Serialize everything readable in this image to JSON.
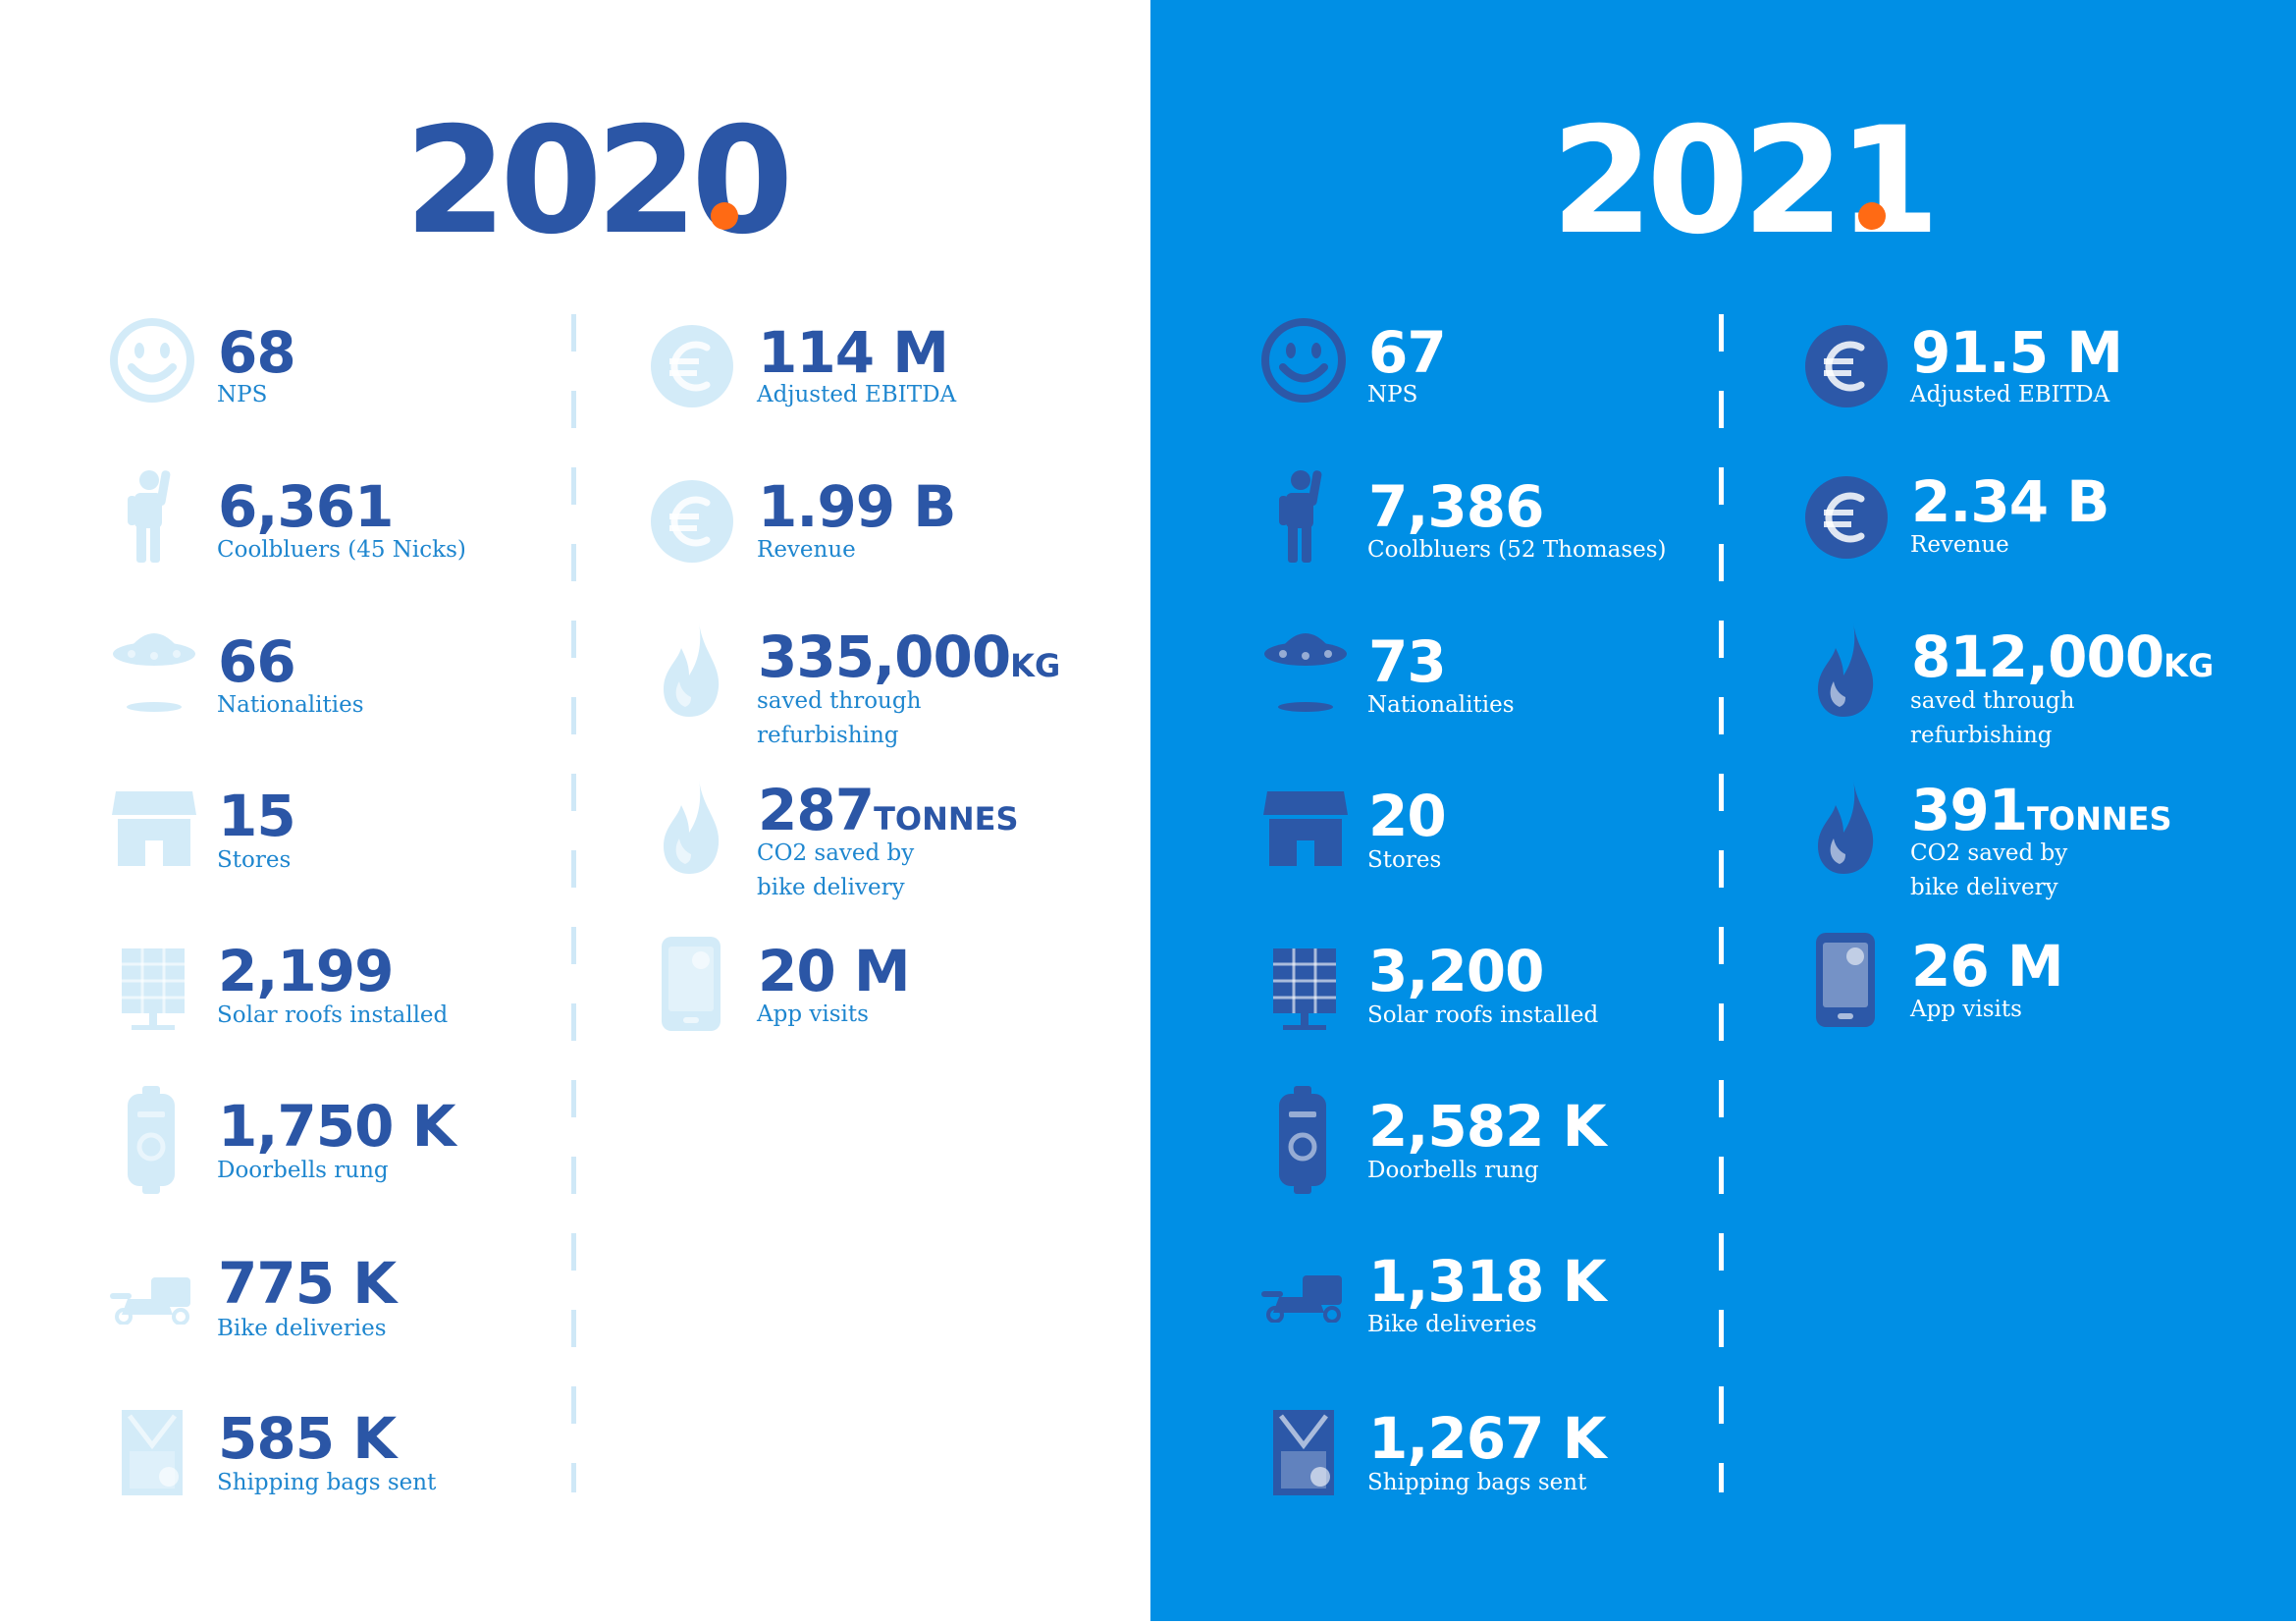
{
  "colors": {
    "dark_blue": "#2b56a6",
    "bright_blue": "#008fe5",
    "light_icon_blue": "#d3ebf8",
    "orange_dot": "#ff6a14",
    "white": "#ffffff"
  },
  "left": {
    "year": "2020",
    "col1": [
      {
        "icon": "smiley-icon",
        "value": "68",
        "label": "NPS"
      },
      {
        "icon": "person-waving-icon",
        "value": "6,361",
        "label": "Coolbluers (45 Nicks)"
      },
      {
        "icon": "flying-saucer-icon",
        "value": "66",
        "label": "Nationalities"
      },
      {
        "icon": "store-icon",
        "value": "15",
        "label": "Stores"
      },
      {
        "icon": "solar-panel-icon",
        "value": "2,199",
        "label": "Solar roofs installed"
      },
      {
        "icon": "doorbell-icon",
        "value": "1,750 K",
        "label": "Doorbells rung"
      },
      {
        "icon": "delivery-bike-icon",
        "value": "775 K",
        "label": "Bike deliveries"
      },
      {
        "icon": "shipping-bag-icon",
        "value": "585 K",
        "label": "Shipping bags sent"
      }
    ],
    "col2": [
      {
        "icon": "euro-coin-icon",
        "value": "114 M",
        "unit": "",
        "label_lines": [
          "Adjusted EBITDA"
        ]
      },
      {
        "icon": "euro-coin-icon",
        "value": "1.99 B",
        "unit": "",
        "label_lines": [
          "Revenue"
        ]
      },
      {
        "icon": "flame-icon",
        "value": "335,000",
        "unit": "KG",
        "label_lines": [
          "saved through",
          "refurbishing"
        ]
      },
      {
        "icon": "flame-icon",
        "value": "287",
        "unit": "TONNES",
        "label_lines": [
          "CO2 saved by",
          "bike delivery"
        ]
      },
      {
        "icon": "smartphone-app-icon",
        "value": "20 M",
        "unit": "",
        "label_lines": [
          "App visits"
        ]
      }
    ]
  },
  "right": {
    "year": "2021",
    "col1": [
      {
        "icon": "smiley-icon",
        "value": "67",
        "label": "NPS"
      },
      {
        "icon": "person-waving-icon",
        "value": "7,386",
        "label": "Coolbluers (52 Thomases)"
      },
      {
        "icon": "flying-saucer-icon",
        "value": "73",
        "label": "Nationalities"
      },
      {
        "icon": "store-icon",
        "value": "20",
        "label": "Stores"
      },
      {
        "icon": "solar-panel-icon",
        "value": "3,200",
        "label": "Solar roofs installed"
      },
      {
        "icon": "doorbell-icon",
        "value": "2,582 K",
        "label": "Doorbells rung"
      },
      {
        "icon": "delivery-bike-icon",
        "value": "1,318 K",
        "label": "Bike deliveries"
      },
      {
        "icon": "shipping-bag-icon",
        "value": "1,267 K",
        "label": "Shipping bags sent"
      }
    ],
    "col2": [
      {
        "icon": "euro-coin-icon",
        "value": "91.5 M",
        "unit": "",
        "label_lines": [
          "Adjusted EBITDA"
        ]
      },
      {
        "icon": "euro-coin-icon",
        "value": "2.34 B",
        "unit": "",
        "label_lines": [
          "Revenue"
        ]
      },
      {
        "icon": "flame-icon",
        "value": "812,000",
        "unit": "KG",
        "label_lines": [
          "saved through",
          "refurbishing"
        ]
      },
      {
        "icon": "flame-icon",
        "value": "391",
        "unit": "TONNES",
        "label_lines": [
          "CO2 saved by",
          "bike delivery"
        ]
      },
      {
        "icon": "smartphone-app-icon",
        "value": "26 M",
        "unit": "",
        "label_lines": [
          "App visits"
        ]
      }
    ]
  }
}
